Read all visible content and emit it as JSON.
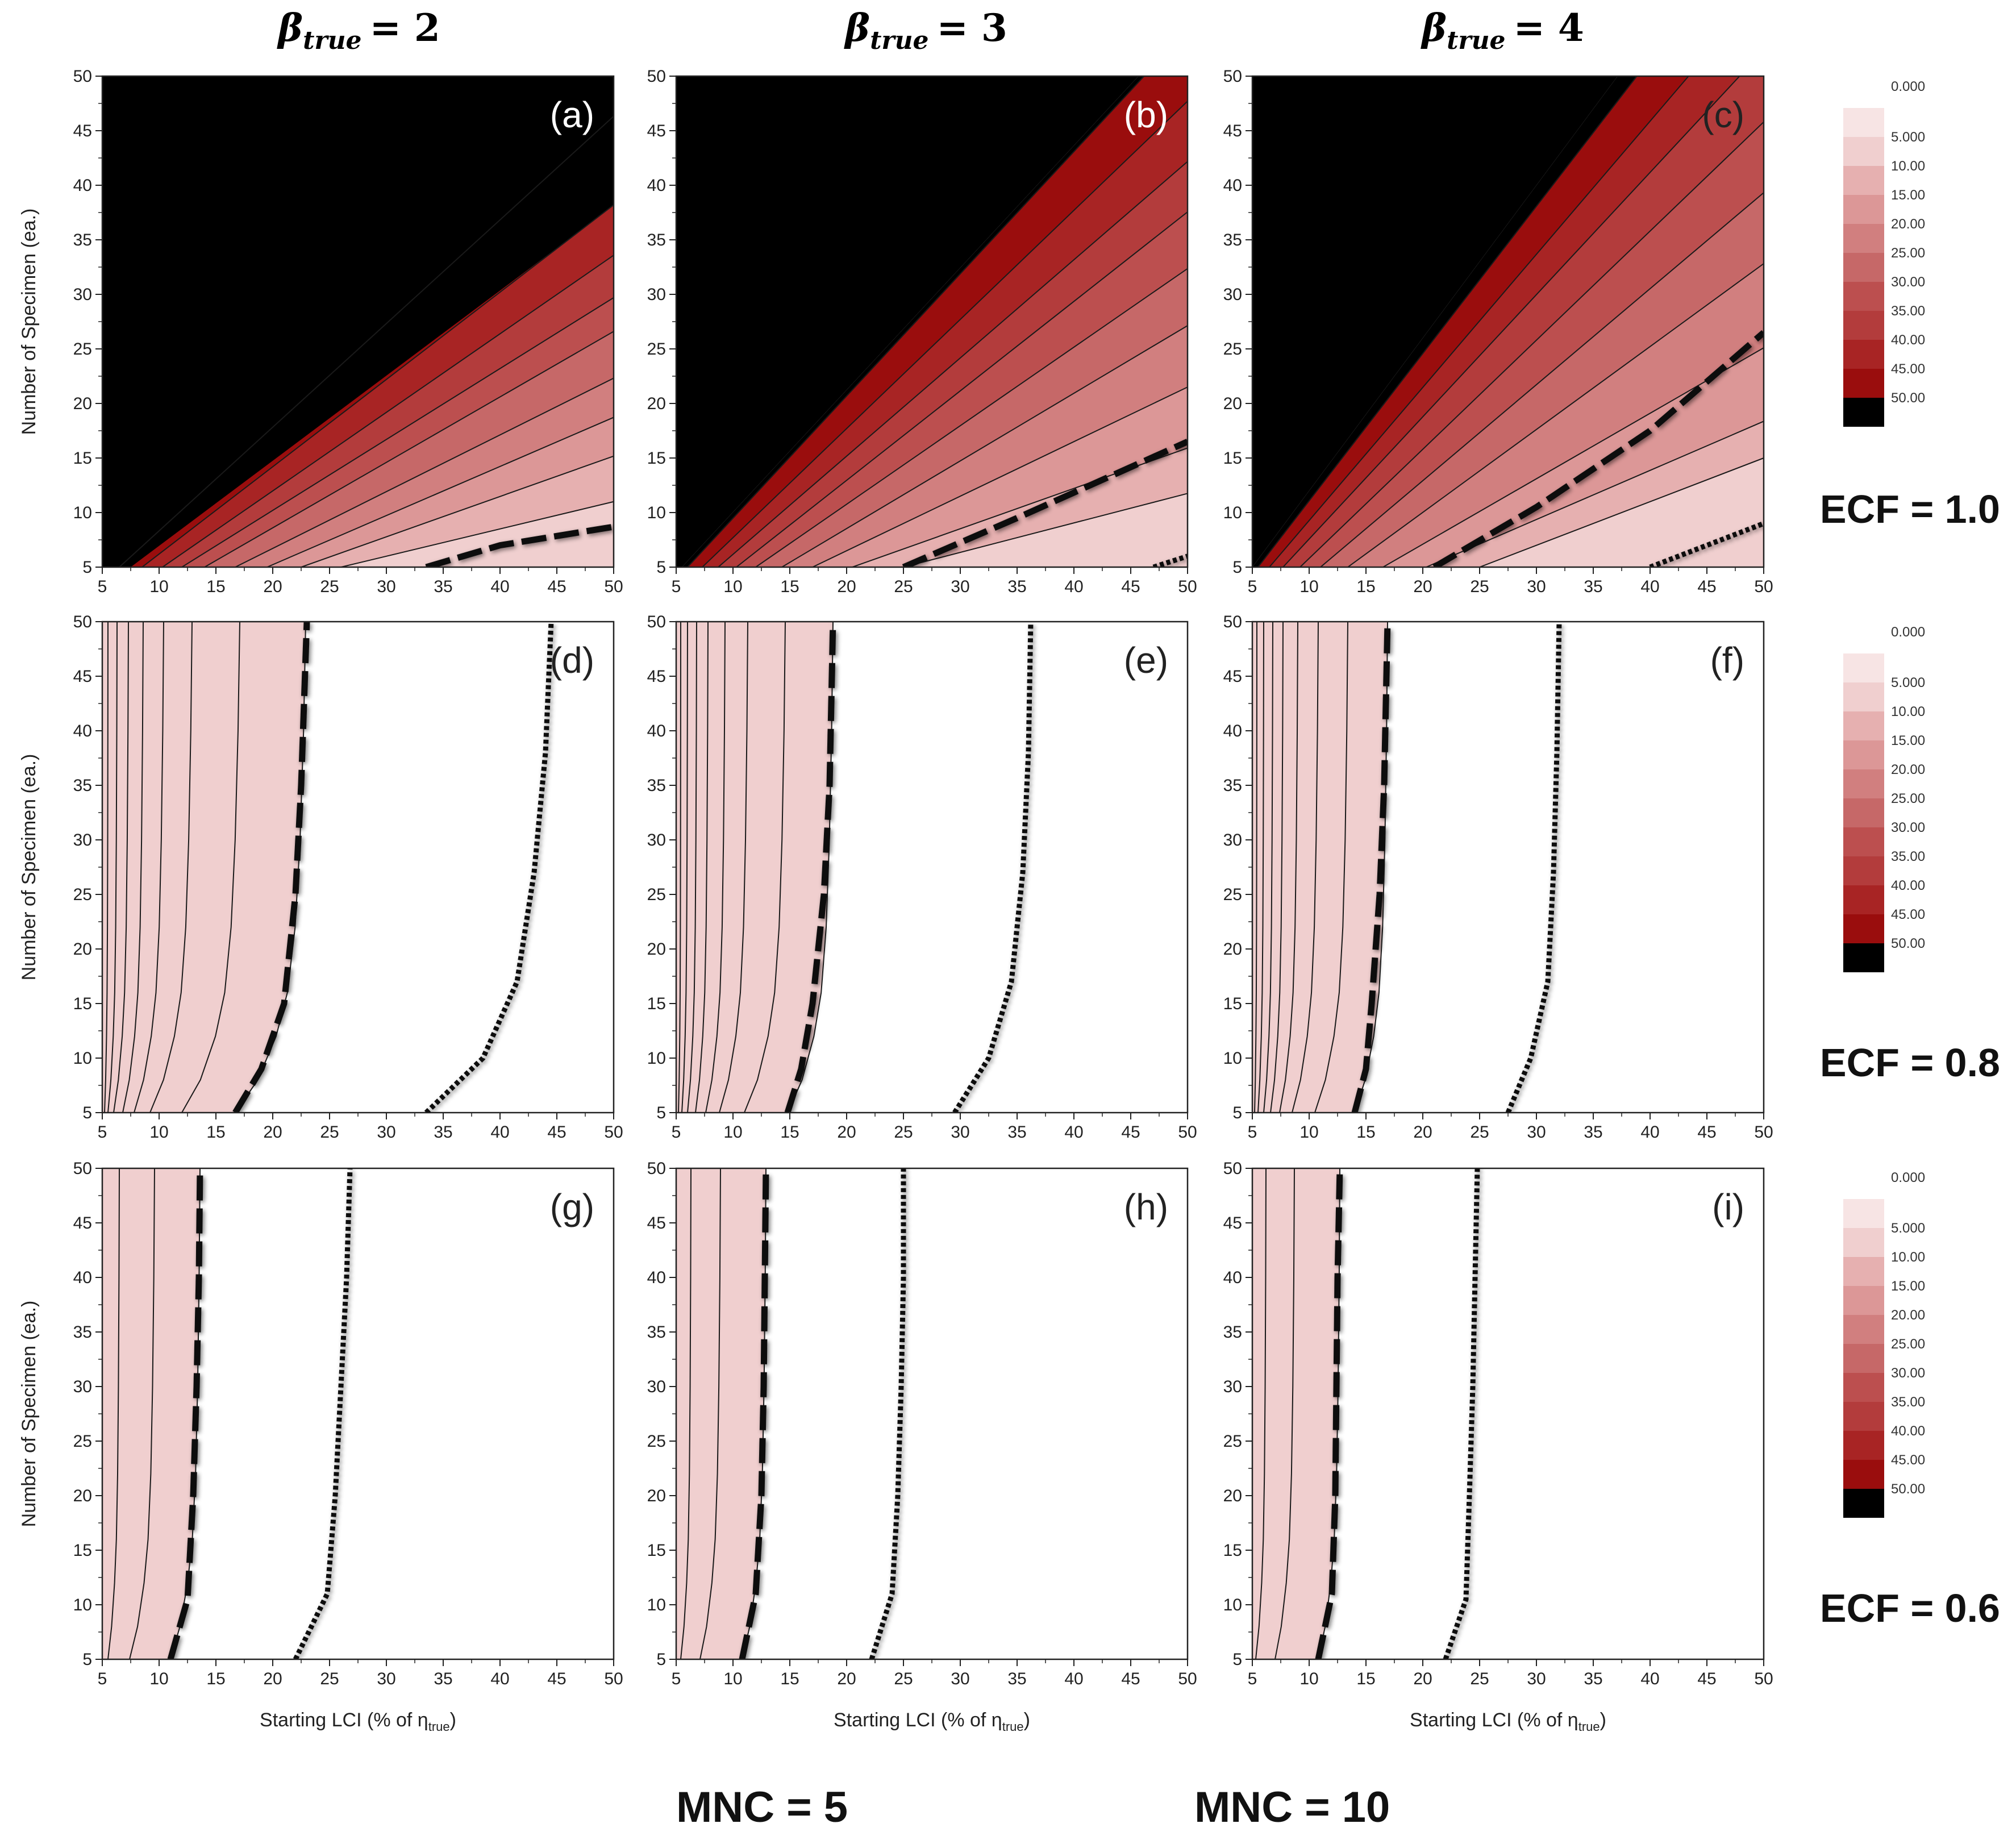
{
  "colors": {
    "levels": [
      "#f7e4e4",
      "#f0cfcf",
      "#e6b0b0",
      "#dc9797",
      "#d17f7f",
      "#c66868",
      "#bc4f4f",
      "#b33c3c",
      "#a82424",
      "#9a0d0d",
      "#000000"
    ],
    "panel_label_dark": "#ffffff",
    "panel_label_light": "#222222"
  },
  "legend": {
    "mnc5_label": "MNC = 5",
    "mnc10_label": "MNC = 10"
  },
  "chart_data": {
    "type": "contour",
    "xlabel_main": "Starting LCI (% of η",
    "xlabel_sub": "true",
    "xlabel_close": ")",
    "ylabel": "Number of Specimen (ea.)",
    "xlim": [
      5,
      50
    ],
    "ylim": [
      5,
      50
    ],
    "xticks": [
      5,
      10,
      15,
      20,
      25,
      30,
      35,
      40,
      45,
      50
    ],
    "yticks": [
      5,
      10,
      15,
      20,
      25,
      30,
      35,
      40,
      45,
      50
    ],
    "column_titles": [
      "β",
      "β",
      "β"
    ],
    "column_title_subs": [
      "true",
      "true",
      "true"
    ],
    "column_title_values": [
      "= 2",
      "= 3",
      "= 4"
    ],
    "row_labels": [
      "ECF = 1.0",
      "ECF = 0.8",
      "ECF = 0.6"
    ],
    "colorbar_levels": [
      "0.000",
      "5.000",
      "10.00",
      "15.00",
      "20.00",
      "25.00",
      "30.00",
      "35.00",
      "40.00",
      "45.00",
      "50.00"
    ],
    "panels": [
      {
        "label": "(a)",
        "kind": "diag",
        "n0": [
          7.5,
          6.5,
          8.5,
          10.3,
          12.0,
          14.0,
          16.7,
          19.5,
          22.5,
          26.0
        ],
        "g": [
          0.78,
          0.95,
          0.8,
          0.72,
          0.65,
          0.6,
          0.52,
          0.45,
          0.37,
          0.25
        ],
        "mnc10": [
          [
            33.5,
            5
          ],
          [
            40,
            7
          ],
          [
            50,
            8.7
          ]
        ],
        "mnc5": []
      },
      {
        "label": "(b)",
        "kind": "diag",
        "n0": [
          5.5,
          6.0,
          7.3,
          8.7,
          10.3,
          12.0,
          14.3,
          17.0,
          20.5,
          25.0
        ],
        "g": [
          1.12,
          1.12,
          1.0,
          0.9,
          0.82,
          0.72,
          0.62,
          0.5,
          0.37,
          0.27
        ],
        "mnc10": [
          [
            25,
            5
          ],
          [
            35,
            9.5
          ],
          [
            50,
            16.5
          ]
        ],
        "mnc5": [
          [
            47,
            5
          ],
          [
            50,
            6
          ]
        ]
      },
      {
        "label": "(c)",
        "kind": "diag",
        "n0": [
          5.0,
          5.5,
          6.5,
          7.7,
          9.2,
          11.0,
          13.4,
          16.5,
          20.3,
          25.0
        ],
        "g": [
          1.4,
          1.35,
          1.22,
          1.12,
          1.0,
          0.88,
          0.76,
          0.6,
          0.45,
          0.4
        ],
        "mnc10": [
          [
            21,
            5
          ],
          [
            30,
            10.5
          ],
          [
            40,
            17.5
          ],
          [
            50,
            26.5
          ]
        ],
        "mnc5": [
          [
            40,
            5
          ],
          [
            50,
            9
          ]
        ]
      },
      {
        "label": "(d)",
        "kind": "vert",
        "x5": [
          5.0,
          5.2,
          5.5,
          6.0,
          6.8,
          7.8,
          9.2,
          12.0,
          16.7
        ],
        "x50": [
          5.0,
          5.5,
          6.3,
          7.3,
          8.6,
          10.4,
          12.9,
          17.1,
          22.9
        ],
        "mnc10": [
          [
            16.7,
            5
          ],
          [
            19,
            9
          ],
          [
            21,
            15
          ],
          [
            22,
            25
          ],
          [
            22.5,
            35
          ],
          [
            23,
            50
          ]
        ],
        "mnc5": [
          [
            33.5,
            5
          ],
          [
            38.5,
            10
          ],
          [
            41.5,
            17
          ],
          [
            43,
            27
          ],
          [
            44,
            38
          ],
          [
            44.5,
            50
          ]
        ]
      },
      {
        "label": "(e)",
        "kind": "vert",
        "x5": [
          5.0,
          5.2,
          5.5,
          6.0,
          6.7,
          7.6,
          8.8,
          11.0,
          14.8
        ],
        "x50": [
          5.0,
          5.4,
          6.0,
          6.8,
          7.8,
          9.3,
          11.3,
          14.6,
          18.8
        ],
        "mnc10": [
          [
            14.8,
            5
          ],
          [
            16,
            9
          ],
          [
            17,
            15
          ],
          [
            18,
            25
          ],
          [
            18.5,
            35
          ],
          [
            18.8,
            50
          ]
        ],
        "mnc5": [
          [
            29.5,
            5
          ],
          [
            32.5,
            10
          ],
          [
            34.5,
            17
          ],
          [
            35.5,
            27
          ],
          [
            36,
            38
          ],
          [
            36.2,
            50
          ]
        ]
      },
      {
        "label": "(f)",
        "kind": "vert",
        "x5": [
          5.0,
          5.2,
          5.5,
          6.0,
          6.6,
          7.4,
          8.5,
          10.5,
          14.0
        ],
        "x50": [
          5.0,
          5.4,
          6.0,
          6.8,
          7.7,
          9.0,
          10.8,
          13.4,
          16.9
        ],
        "mnc10": [
          [
            14,
            5
          ],
          [
            15,
            9
          ],
          [
            15.5,
            15
          ],
          [
            16.2,
            25
          ],
          [
            16.6,
            35
          ],
          [
            16.9,
            50
          ]
        ],
        "mnc5": [
          [
            27.5,
            5
          ],
          [
            29.5,
            10
          ],
          [
            31,
            17
          ],
          [
            31.5,
            27
          ],
          [
            31.8,
            38
          ],
          [
            32,
            50
          ]
        ]
      },
      {
        "label": "(g)",
        "kind": "vert",
        "x5": [
          5.0,
          5.0,
          5.0,
          5.0,
          5.0,
          5.5,
          7.4,
          11.0
        ],
        "x50": [
          5.0,
          5.0,
          5.0,
          5.0,
          5.0,
          6.5,
          9.6,
          13.6
        ],
        "mnc10": [
          [
            11,
            5
          ],
          [
            12.5,
            10.5
          ],
          [
            13,
            20
          ],
          [
            13.3,
            30
          ],
          [
            13.5,
            40
          ],
          [
            13.6,
            50
          ]
        ],
        "mnc5": [
          [
            22,
            5
          ],
          [
            24.8,
            11
          ],
          [
            25.5,
            20
          ],
          [
            26,
            30
          ],
          [
            26.5,
            40
          ],
          [
            26.8,
            50
          ]
        ]
      },
      {
        "label": "(h)",
        "kind": "vert",
        "x5": [
          5.0,
          5.0,
          5.0,
          5.0,
          5.0,
          5.4,
          7.1,
          10.8
        ],
        "x50": [
          5.0,
          5.0,
          5.0,
          5.0,
          5.0,
          6.3,
          8.9,
          12.9
        ],
        "mnc10": [
          [
            10.8,
            5
          ],
          [
            12,
            11
          ],
          [
            12.5,
            20
          ],
          [
            12.7,
            30
          ],
          [
            12.8,
            40
          ],
          [
            12.9,
            50
          ]
        ],
        "mnc5": [
          [
            22.2,
            5
          ],
          [
            24,
            11
          ],
          [
            24.5,
            20
          ],
          [
            24.8,
            30
          ],
          [
            25,
            40
          ],
          [
            25,
            50
          ]
        ]
      },
      {
        "label": "(i)",
        "kind": "vert",
        "x5": [
          5.0,
          5.0,
          5.0,
          5.0,
          5.0,
          5.3,
          7.0,
          10.8
        ],
        "x50": [
          5.0,
          5.0,
          5.0,
          5.0,
          5.0,
          6.2,
          8.7,
          12.7
        ],
        "mnc10": [
          [
            10.8,
            5
          ],
          [
            12,
            11
          ],
          [
            12.3,
            20
          ],
          [
            12.4,
            30
          ],
          [
            12.5,
            40
          ],
          [
            12.7,
            50
          ]
        ],
        "mnc5": [
          [
            22,
            5
          ],
          [
            23.8,
            10.5
          ],
          [
            24.1,
            20
          ],
          [
            24.4,
            30
          ],
          [
            24.6,
            40
          ],
          [
            24.8,
            50
          ]
        ]
      }
    ]
  }
}
